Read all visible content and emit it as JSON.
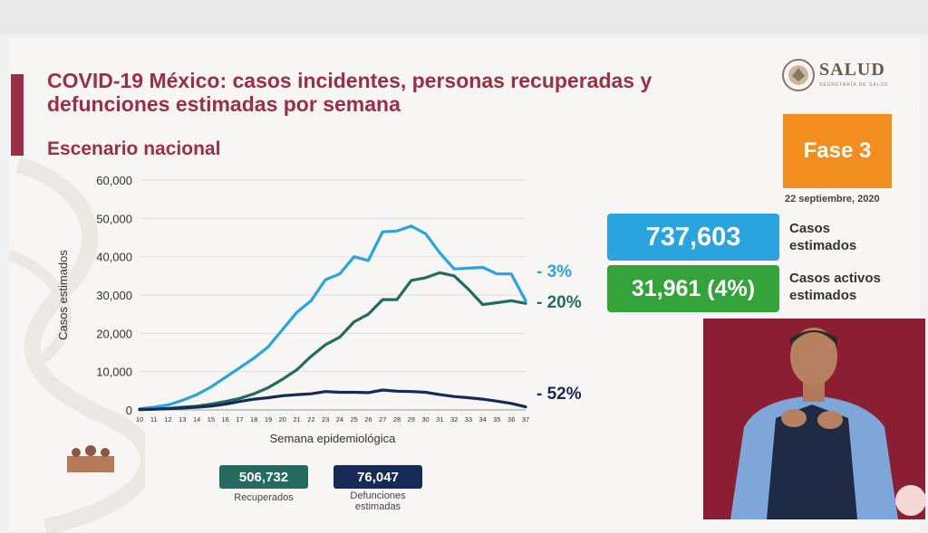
{
  "header": {
    "title": "COVID-19 México: casos incidentes, personas recuperadas y defunciones estimadas por semana",
    "subtitle": "Escenario nacional"
  },
  "logo": {
    "text": "SALUD",
    "subtext": "SECRETARÍA DE SALUD",
    "icon": "eagle-emblem-icon"
  },
  "phase": {
    "label": "Fase 3",
    "date": "22 septiembre, 2020",
    "color": "#f28d1f"
  },
  "stats": {
    "casos_value": "737,603",
    "casos_label_1": "Casos",
    "casos_label_2": "estimados",
    "activos_value": "31,961 (4%)",
    "activos_label_1": "Casos activos",
    "activos_label_2": "estimados"
  },
  "bottom": {
    "recuperados_value": "506,732",
    "recuperados_label": "Recuperados",
    "defunciones_value": "76,047",
    "defunciones_label_1": "Defunciones",
    "defunciones_label_2": "estimadas"
  },
  "chart_data": {
    "type": "line",
    "xlabel": "Semana epidemiológica",
    "ylabel": "Casos estimados",
    "ylim": [
      0,
      60000
    ],
    "yticks": [
      0,
      10000,
      20000,
      30000,
      40000,
      50000,
      60000
    ],
    "ytick_labels": [
      "0",
      "10,000",
      "20,000",
      "30,000",
      "40,000",
      "50,000",
      "60,000"
    ],
    "grid": "horizontal",
    "x": [
      10,
      11,
      12,
      13,
      14,
      15,
      16,
      17,
      18,
      19,
      20,
      21,
      22,
      23,
      24,
      25,
      26,
      27,
      28,
      29,
      30,
      31,
      32,
      33,
      34,
      35,
      36,
      37
    ],
    "series": [
      {
        "color": "#29a4df",
        "end_label": "- 3%",
        "values": [
          300,
          700,
          1300,
          2500,
          4000,
          6000,
          8500,
          11000,
          13500,
          16500,
          21000,
          25500,
          28500,
          34000,
          35500,
          40000,
          39000,
          46500,
          46700,
          48000,
          46000,
          41000,
          36800,
          37000,
          37200,
          35500,
          35500,
          28500
        ]
      },
      {
        "color": "#236a5f",
        "end_label": "- 20%",
        "values": [
          100,
          200,
          400,
          700,
          1000,
          1500,
          2200,
          3000,
          4200,
          5800,
          8000,
          10500,
          14000,
          17000,
          19000,
          23000,
          25000,
          28800,
          28800,
          33800,
          34500,
          35800,
          35000,
          31500,
          27500,
          28000,
          28500,
          27800
        ]
      },
      {
        "color": "#152a55",
        "end_label": "- 52%",
        "values": [
          100,
          200,
          300,
          500,
          700,
          1000,
          1500,
          2200,
          2800,
          3200,
          3700,
          4000,
          4200,
          4800,
          4600,
          4600,
          4500,
          5200,
          4900,
          4800,
          4600,
          4000,
          3500,
          3200,
          2800,
          2300,
          1700,
          800
        ]
      }
    ]
  }
}
